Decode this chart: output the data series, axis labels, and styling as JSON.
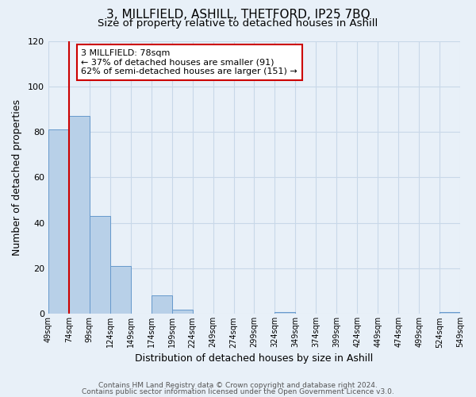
{
  "title": "3, MILLFIELD, ASHILL, THETFORD, IP25 7BQ",
  "subtitle": "Size of property relative to detached houses in Ashill",
  "xlabel": "Distribution of detached houses by size in Ashill",
  "ylabel": "Number of detached properties",
  "footer_line1": "Contains HM Land Registry data © Crown copyright and database right 2024.",
  "footer_line2": "Contains public sector information licensed under the Open Government Licence v3.0.",
  "bar_left_edges": [
    49,
    74,
    99,
    124,
    149,
    174,
    199,
    224,
    249,
    274,
    299,
    324,
    349,
    374,
    399,
    424,
    449,
    474,
    499,
    524
  ],
  "bar_heights": [
    81,
    87,
    43,
    21,
    0,
    8,
    2,
    0,
    0,
    0,
    0,
    1,
    0,
    0,
    0,
    0,
    0,
    0,
    0,
    1
  ],
  "bar_color": "#b8d0e8",
  "bar_edge_color": "#6699cc",
  "property_line_x": 74,
  "property_line_color": "#cc0000",
  "annotation_title": "3 MILLFIELD: 78sqm",
  "annotation_line1": "← 37% of detached houses are smaller (91)",
  "annotation_line2": "62% of semi-detached houses are larger (151) →",
  "annotation_box_color": "#cc0000",
  "ylim": [
    0,
    120
  ],
  "xlim": [
    49,
    549
  ],
  "yticks": [
    0,
    20,
    40,
    60,
    80,
    100,
    120
  ],
  "xtick_labels": [
    "49sqm",
    "74sqm",
    "99sqm",
    "124sqm",
    "149sqm",
    "174sqm",
    "199sqm",
    "224sqm",
    "249sqm",
    "274sqm",
    "299sqm",
    "324sqm",
    "349sqm",
    "374sqm",
    "399sqm",
    "424sqm",
    "449sqm",
    "474sqm",
    "499sqm",
    "524sqm",
    "549sqm"
  ],
  "xtick_positions": [
    49,
    74,
    99,
    124,
    149,
    174,
    199,
    224,
    249,
    274,
    299,
    324,
    349,
    374,
    399,
    424,
    449,
    474,
    499,
    524,
    549
  ],
  "grid_color": "#c8d8e8",
  "bg_color": "#e8f0f8",
  "title_fontsize": 11,
  "subtitle_fontsize": 9.5
}
